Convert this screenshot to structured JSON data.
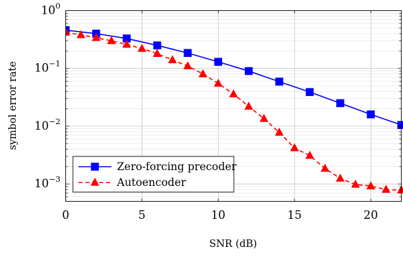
{
  "chart_data": {
    "type": "line",
    "title": "",
    "xlabel": "SNR (dB)",
    "ylabel": "symbol error rate",
    "xlim": [
      0,
      22
    ],
    "ylim": [
      0.0005,
      1
    ],
    "yscale": "log",
    "grid": true,
    "legend_position": "bottom-left",
    "x_ticks": [
      0,
      5,
      10,
      15,
      20
    ],
    "x_tick_labels": [
      "0",
      "5",
      "10",
      "15",
      "20"
    ],
    "y_ticks": [
      {
        "value": 1,
        "base": "10",
        "exp": "0"
      },
      {
        "value": 0.1,
        "base": "10",
        "exp": "−1"
      },
      {
        "value": 0.01,
        "base": "10",
        "exp": "−2"
      },
      {
        "value": 0.001,
        "base": "10",
        "exp": "−3"
      }
    ],
    "series": [
      {
        "name": "Zero-forcing precoder",
        "color": "#0000ff",
        "marker": "square",
        "line_style": "solid",
        "x": [
          0,
          2,
          4,
          6,
          8,
          10,
          12,
          14,
          16,
          18,
          20,
          22
        ],
        "values": [
          0.46,
          0.4,
          0.33,
          0.25,
          0.185,
          0.13,
          0.09,
          0.059,
          0.039,
          0.025,
          0.016,
          0.0105
        ]
      },
      {
        "name": "Autoencoder",
        "color": "#ff0000",
        "marker": "triangle",
        "line_style": "dashed",
        "x": [
          0,
          1,
          2,
          3,
          4,
          5,
          6,
          7,
          8,
          9,
          10,
          11,
          12,
          13,
          14,
          15,
          16,
          17,
          18,
          19,
          20,
          21,
          22
        ],
        "values": [
          0.42,
          0.38,
          0.34,
          0.3,
          0.26,
          0.22,
          0.18,
          0.14,
          0.11,
          0.08,
          0.055,
          0.036,
          0.022,
          0.0135,
          0.0078,
          0.0042,
          0.0031,
          0.00185,
          0.00125,
          0.00098,
          0.00092,
          0.0008,
          0.00078
        ]
      }
    ]
  }
}
